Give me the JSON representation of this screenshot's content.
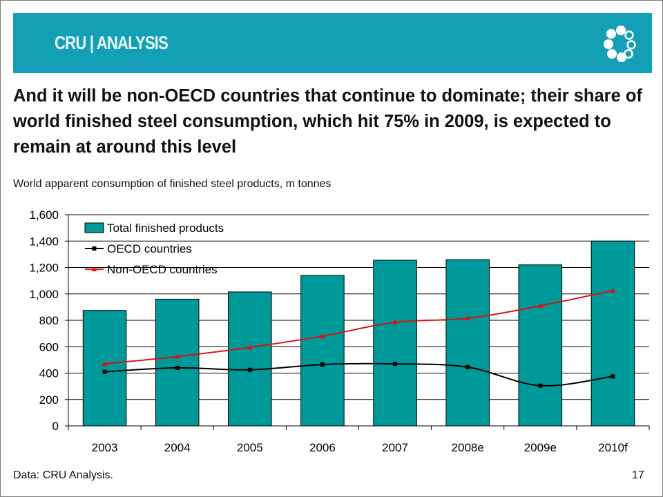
{
  "brand": {
    "logo_text": "CRU|ANALYSIS",
    "logo_label": "CRU | ANALYSIS",
    "banner_color": "#13a0b7"
  },
  "headline": "And it will be non-OECD countries that continue to dominate; their share of world finished steel consumption, which hit 75% in 2009, is expected to remain at around this level",
  "subtitle": "World apparent consumption of finished steel products, m tonnes",
  "footer": {
    "source": "Data: CRU Analysis.",
    "page_number": "17"
  },
  "chart_data": {
    "type": "bar",
    "categories": [
      "2003",
      "2004",
      "2005",
      "2006",
      "2007",
      "2008e",
      "2009e",
      "2010f"
    ],
    "series": [
      {
        "name": "Total finished products",
        "type": "bar",
        "color": "#009999",
        "values": [
          875,
          960,
          1015,
          1140,
          1255,
          1260,
          1220,
          1400
        ]
      },
      {
        "name": "OECD countries",
        "type": "line",
        "marker": "square",
        "color": "#000000",
        "values": [
          410,
          440,
          425,
          465,
          470,
          445,
          305,
          375
        ]
      },
      {
        "name": "Non-OECD countries",
        "type": "line",
        "marker": "triangle",
        "color": "#dd1111",
        "values": [
          470,
          525,
          595,
          680,
          785,
          815,
          910,
          1025
        ]
      }
    ],
    "ylim": [
      0,
      1600
    ],
    "yticks": [
      0,
      200,
      400,
      600,
      800,
      1000,
      1200,
      1400,
      1600
    ],
    "ytick_labels": [
      "0",
      "200",
      "400",
      "600",
      "800",
      "1,000",
      "1,200",
      "1,400",
      "1,600"
    ],
    "grid": true,
    "legend_position": "top-left"
  }
}
